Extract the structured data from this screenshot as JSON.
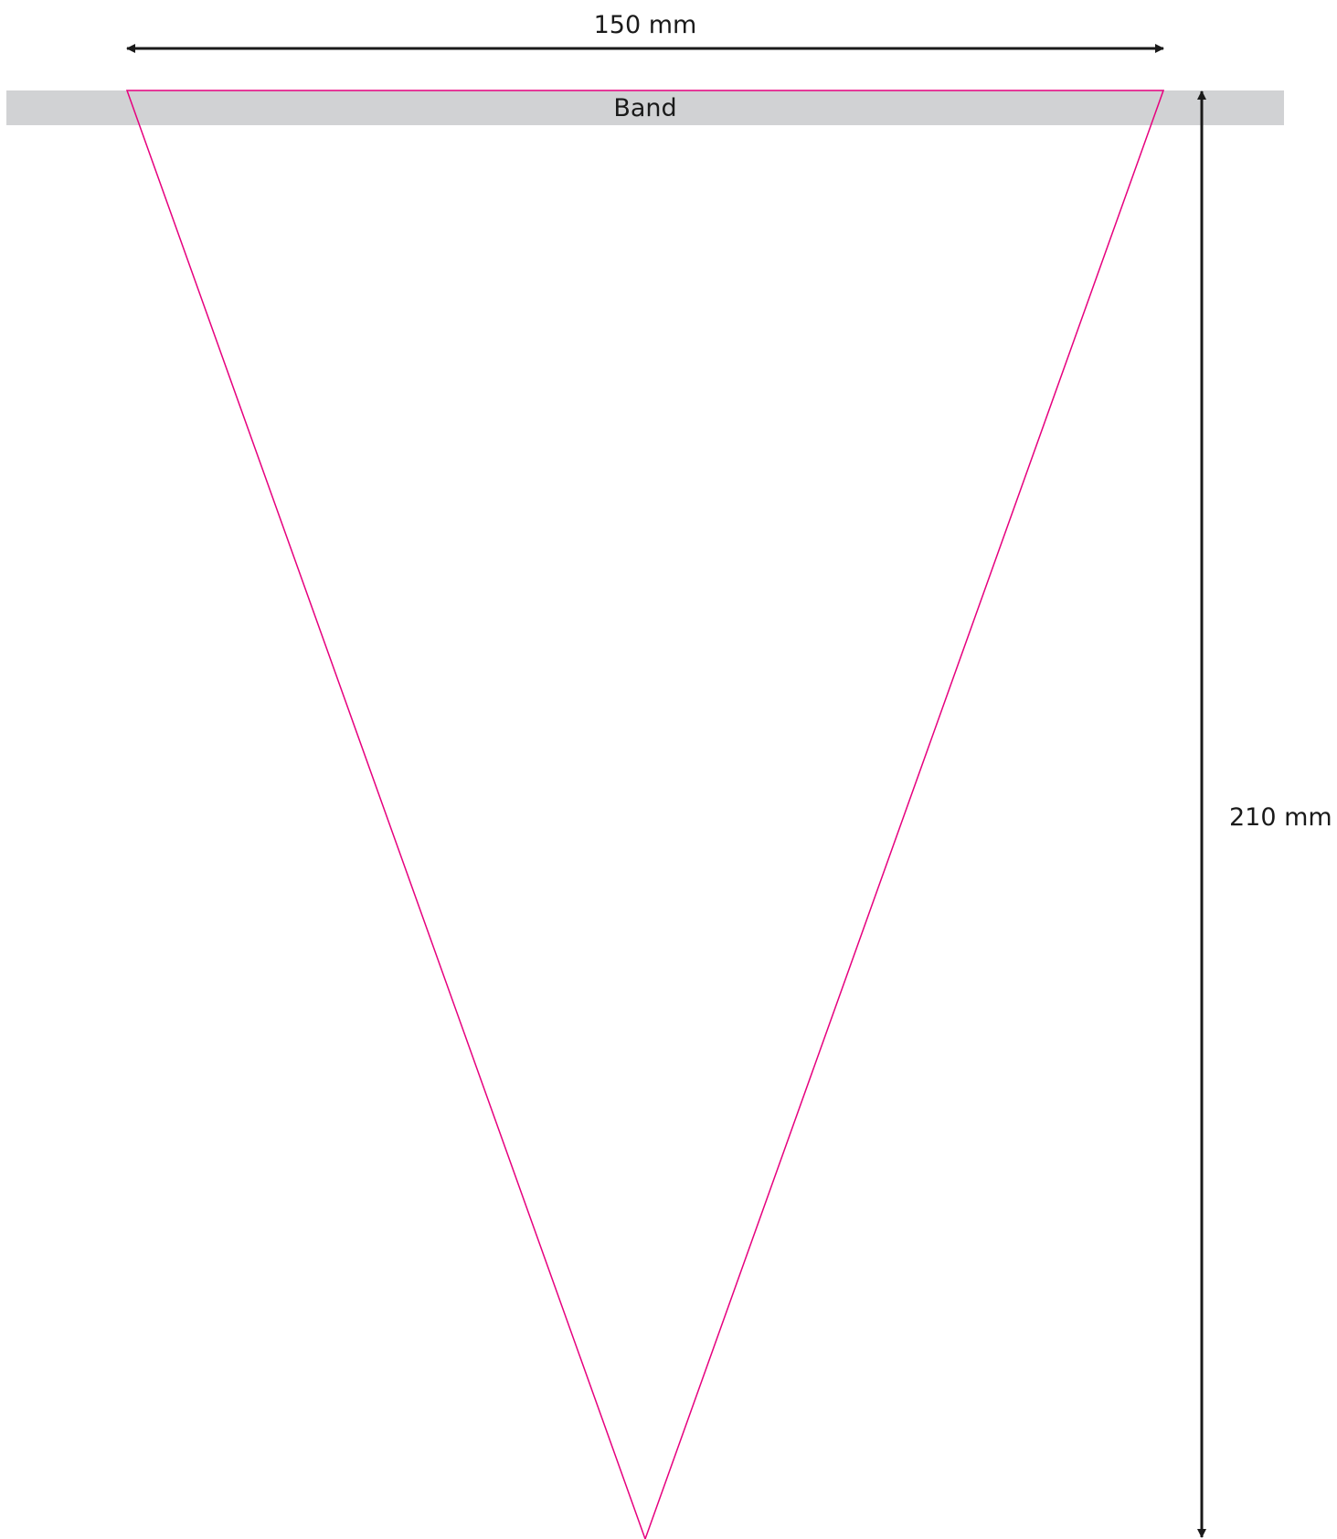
{
  "diagram": {
    "width_dimension": "150 mm",
    "height_dimension": "210 mm",
    "band_label": "Band",
    "colors": {
      "band_fill": "#d1d2d4",
      "triangle_stroke": "#e6007e",
      "dimension_line": "#1a1a1a",
      "text": "#1a1a1a"
    }
  }
}
